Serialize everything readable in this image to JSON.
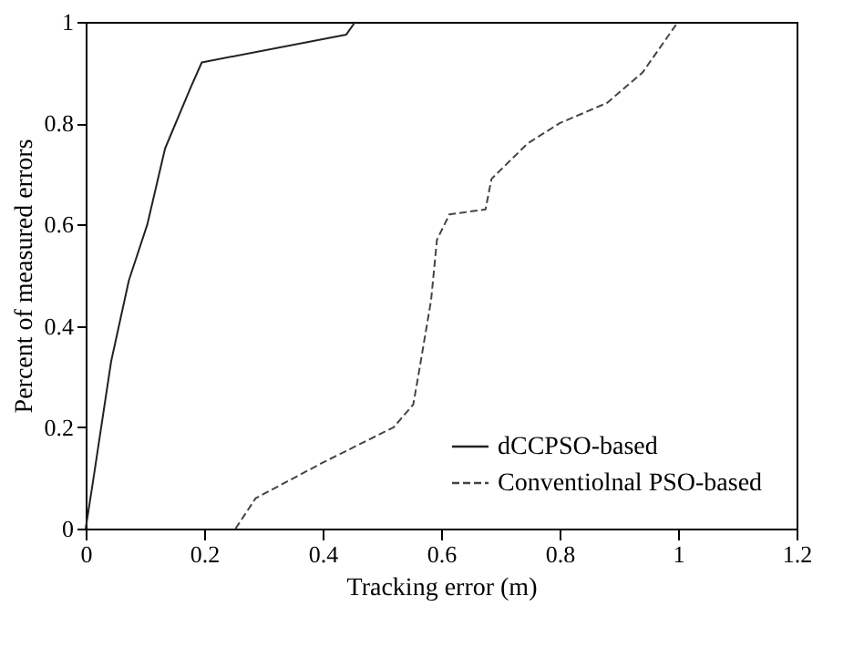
{
  "chart_data": {
    "type": "line",
    "xlabel": "Tracking error (m)",
    "ylabel": "Percent of measured errors",
    "xlim": [
      0,
      1.2
    ],
    "ylim": [
      0,
      1
    ],
    "xticks": [
      0,
      0.2,
      0.4,
      0.6,
      0.8,
      1,
      1.2
    ],
    "yticks": [
      0,
      0.2,
      0.4,
      0.6,
      0.8,
      1
    ],
    "grid": false,
    "legend": "bottom right",
    "marker": "none",
    "series": [
      {
        "name": "dCCPSO-based",
        "color": "#222222",
        "line_style": "solid",
        "x": [
          0,
          0.012,
          0.043,
          0.073,
          0.104,
          0.134,
          0.177,
          0.196,
          0.44,
          0.455
        ],
        "values": [
          0,
          0.09,
          0.33,
          0.49,
          0.6,
          0.75,
          0.87,
          0.92,
          0.975,
          1
        ]
      },
      {
        "name": "Conventiolnal PSO-based",
        "color": "#444444",
        "line_style": "dashed",
        "x": [
          0.253,
          0.287,
          0.4,
          0.52,
          0.553,
          0.562,
          0.583,
          0.593,
          0.614,
          0.675,
          0.685,
          0.746,
          0.8,
          0.88,
          0.94,
          1.0
        ],
        "values": [
          0,
          0.06,
          0.13,
          0.2,
          0.245,
          0.305,
          0.45,
          0.57,
          0.62,
          0.63,
          0.69,
          0.76,
          0.8,
          0.84,
          0.9,
          1
        ]
      }
    ]
  }
}
